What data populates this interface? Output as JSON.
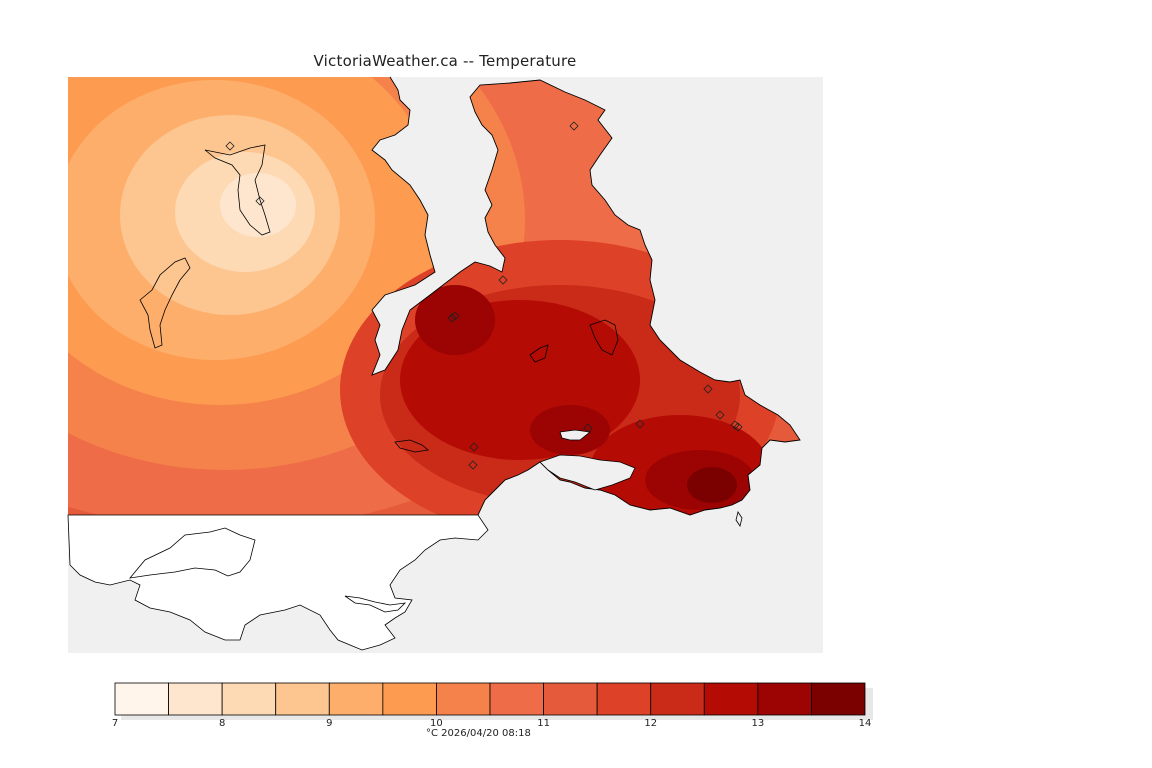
{
  "title": "VictoriaWeather.ca -- Temperature",
  "colorbar": {
    "min": 7,
    "max": 14,
    "step": 0.5,
    "tick_labels": [
      "7",
      "8",
      "9",
      "10",
      "11",
      "12",
      "13",
      "14"
    ],
    "colors": [
      "#fff5eb",
      "#fee6ce",
      "#fdd9b4",
      "#fdc58f",
      "#fdae6b",
      "#fd9b50",
      "#f5824b",
      "#ee6c47",
      "#e65a3c",
      "#dd4127",
      "#ca2a18",
      "#b40b05",
      "#9c0303",
      "#7b0000"
    ]
  },
  "footer": {
    "unit": "°C",
    "timestamp": "2026/04/20 08:18"
  },
  "map": {
    "background_color": "#f0f0f0",
    "land_color": "#ffffff",
    "station_marker": "diamond-icon"
  }
}
